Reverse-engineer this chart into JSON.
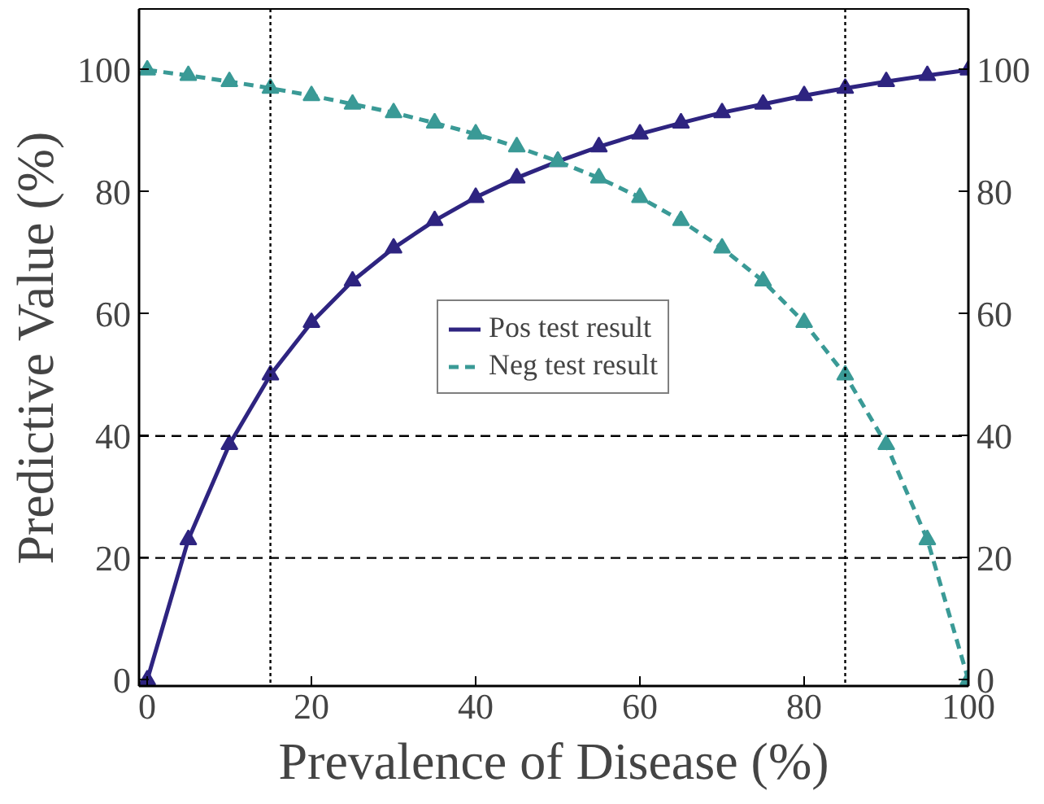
{
  "chart_data": {
    "type": "line",
    "xlabel": "Prevalence of Disease (%)",
    "ylabel": "Predictive Value (%)",
    "x": [
      0,
      5,
      10,
      15,
      20,
      25,
      30,
      35,
      40,
      45,
      50,
      55,
      60,
      65,
      70,
      75,
      80,
      85,
      90,
      95,
      100
    ],
    "series": [
      {
        "name": "Pos test result",
        "color": "#2e2480",
        "marker": "triangle",
        "line_style": "solid",
        "values": [
          0,
          23,
          38.6,
          50,
          58.6,
          65.4,
          70.8,
          75.3,
          79.1,
          82.3,
          85,
          87.4,
          89.5,
          91.3,
          93,
          94.4,
          95.8,
          97,
          98.1,
          99.1,
          100
        ]
      },
      {
        "name": "Neg test result",
        "color": "#3a9a96",
        "marker": "triangle",
        "line_style": "dashed",
        "values": [
          100,
          99.1,
          98.1,
          97,
          95.8,
          94.4,
          93,
          91.3,
          89.5,
          87.4,
          85,
          82.3,
          79.1,
          75.3,
          70.8,
          65.4,
          58.6,
          50,
          38.6,
          23,
          0
        ]
      }
    ],
    "xlim": [
      -1,
      100
    ],
    "ylim": [
      -1,
      110
    ],
    "y2lim": [
      -1,
      110
    ],
    "xticks": [
      0,
      20,
      40,
      60,
      80,
      100
    ],
    "yticks": [
      0,
      20,
      40,
      60,
      80,
      100
    ],
    "y2ticks": [
      0,
      20,
      40,
      60,
      80,
      100
    ],
    "ref_lines": [
      {
        "axis": "x",
        "value": 15,
        "line_style": "dotted"
      },
      {
        "axis": "x",
        "value": 85,
        "line_style": "dotted"
      },
      {
        "axis": "y",
        "value": 20,
        "line_style": "dashed"
      },
      {
        "axis": "y",
        "value": 40,
        "line_style": "dashed"
      }
    ],
    "legend": "center",
    "grid": false
  }
}
